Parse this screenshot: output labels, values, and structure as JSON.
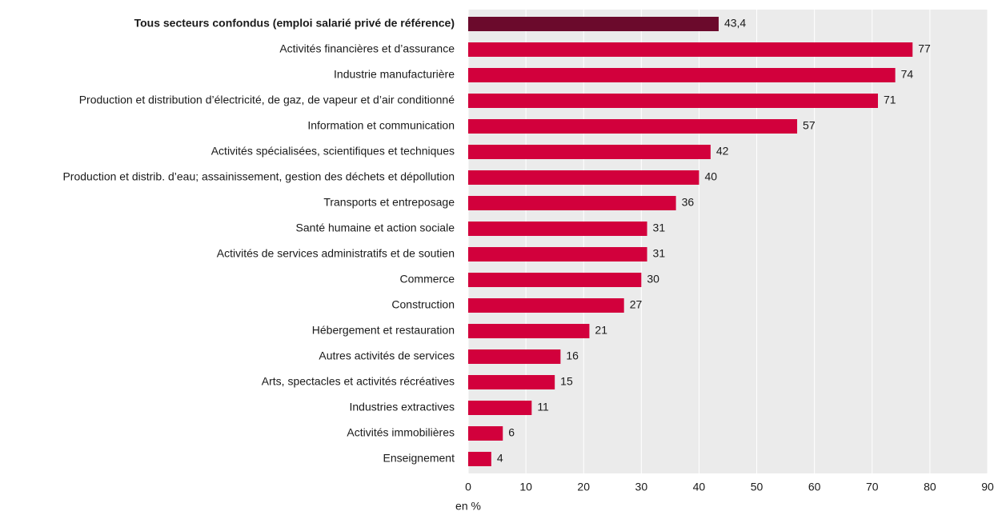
{
  "chart_data": {
    "type": "barh",
    "categories": [
      "Tous secteurs confondus (emploi salarié privé de référence)",
      "Activités financières et d’assurance",
      "Industrie manufacturière",
      "Production et distribution d’électricité, de gaz, de vapeur et d’air conditionné",
      "Information et communication",
      "Activités spécialisées, scientifiques et techniques",
      "Production et distrib. d’eau; assainissement, gestion des déchets et dépollution",
      "Transports et entreposage",
      "Santé humaine et action sociale",
      "Activités de services administratifs et de soutien",
      "Commerce",
      "Construction",
      "Hébergement et restauration",
      "Autres activités de services",
      "Arts, spectacles et activités récréatives",
      "Industries extractives",
      "Activités immobilières",
      "Enseignement"
    ],
    "values": [
      43.4,
      77,
      74,
      71,
      57,
      42,
      40,
      36,
      31,
      31,
      30,
      27,
      21,
      16,
      15,
      11,
      6,
      4
    ],
    "value_labels": [
      "43,4",
      "77",
      "74",
      "71",
      "57",
      "42",
      "40",
      "36",
      "31",
      "31",
      "30",
      "27",
      "21",
      "16",
      "15",
      "11",
      "6",
      "4"
    ],
    "colors": [
      "#6b0a2c",
      "#d2003c",
      "#d2003c",
      "#d2003c",
      "#d2003c",
      "#d2003c",
      "#d2003c",
      "#d2003c",
      "#d2003c",
      "#d2003c",
      "#d2003c",
      "#d2003c",
      "#d2003c",
      "#d2003c",
      "#d2003c",
      "#d2003c",
      "#d2003c",
      "#d2003c"
    ],
    "xlabel": "en %",
    "xlim": [
      0,
      90
    ],
    "xticks": [
      0,
      10,
      20,
      30,
      40,
      50,
      60,
      70,
      80,
      90
    ],
    "grid": true
  }
}
